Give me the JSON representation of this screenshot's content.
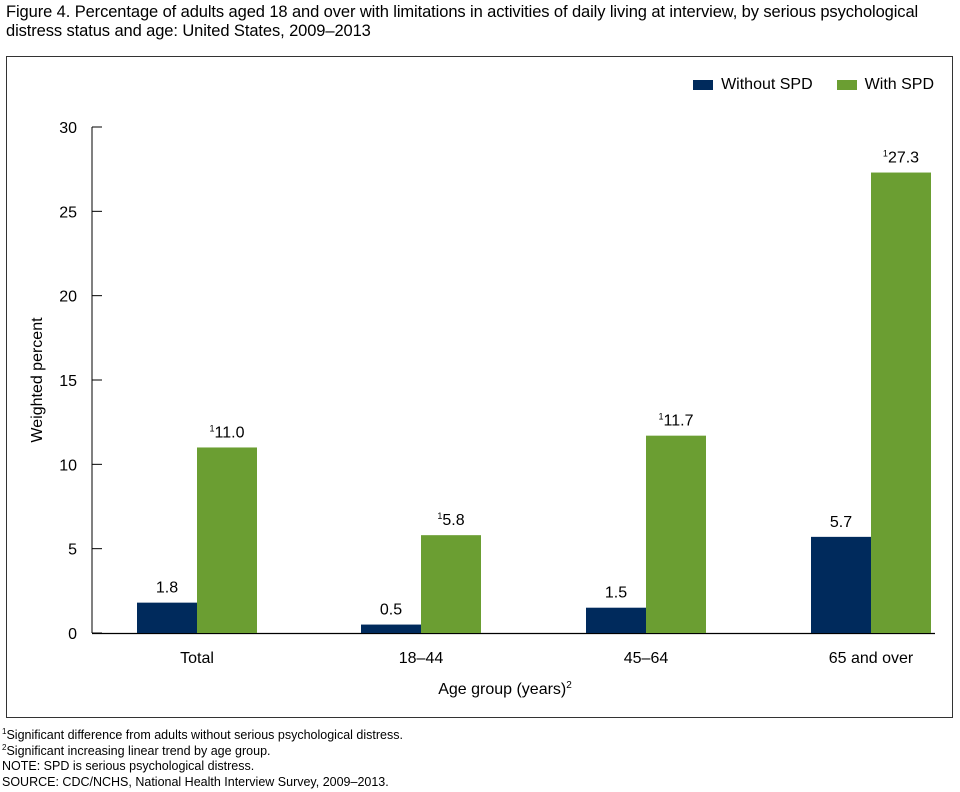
{
  "title": "Figure 4. Percentage of adults aged 18 and over with limitations in activities of daily living at interview, by serious psychological distress status and age: United States, 2009–2013",
  "chart_data": {
    "type": "bar",
    "title": "Percentage of adults aged 18 and over with limitations in activities of daily living at interview, by serious psychological distress status and age: United States, 2009–2013",
    "xlabel": "Age group (years)",
    "xlabel_superscript": "2",
    "ylabel": "Weighted percent",
    "ylim": [
      0,
      30
    ],
    "yticks": [
      0,
      5,
      10,
      15,
      20,
      25,
      30
    ],
    "grid": false,
    "legend_position": "top-right",
    "categories": [
      "Total",
      "18–44",
      "45–64",
      "65 and over"
    ],
    "series": [
      {
        "name": "Without SPD",
        "color": "#002a5c",
        "values": [
          1.8,
          0.5,
          1.5,
          5.7
        ],
        "labels": [
          "1.8",
          "0.5",
          "1.5",
          "5.7"
        ],
        "label_superscripts": [
          "",
          "",
          "",
          ""
        ]
      },
      {
        "name": "With SPD",
        "color": "#6b9e32",
        "values": [
          11.0,
          5.8,
          11.7,
          27.3
        ],
        "labels": [
          "11.0",
          "5.8",
          "11.7",
          "27.3"
        ],
        "label_superscripts": [
          "1",
          "1",
          "1",
          "1"
        ]
      }
    ]
  },
  "footnotes": [
    {
      "sup": "1",
      "text": "Significant difference from adults without serious psychological distress."
    },
    {
      "sup": "2",
      "text": "Significant increasing linear trend by age group."
    },
    {
      "sup": "",
      "text": "NOTE: SPD is serious psychological distress."
    },
    {
      "sup": "",
      "text": "SOURCE: CDC/NCHS, National Health Interview Survey, 2009–2013."
    }
  ]
}
